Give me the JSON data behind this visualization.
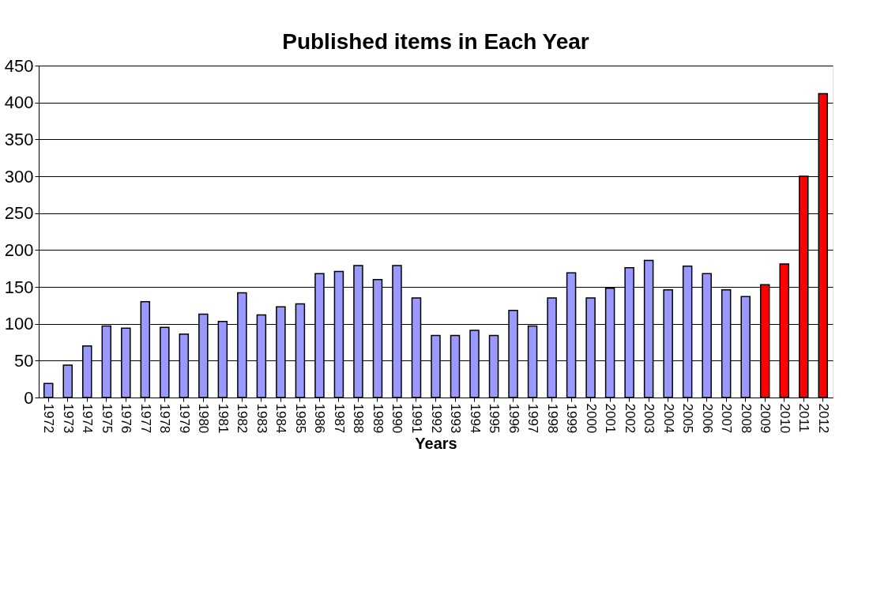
{
  "chart_data": {
    "type": "bar",
    "title": "Published items in Each Year",
    "xlabel": "Years",
    "categories": [
      "1972",
      "1973",
      "1974",
      "1975",
      "1976",
      "1977",
      "1978",
      "1979",
      "1980",
      "1981",
      "1982",
      "1983",
      "1984",
      "1985",
      "1986",
      "1987",
      "1988",
      "1989",
      "1990",
      "1991",
      "1992",
      "1993",
      "1994",
      "1995",
      "1996",
      "1997",
      "1998",
      "1999",
      "2000",
      "2001",
      "2002",
      "2003",
      "2004",
      "2005",
      "2006",
      "2007",
      "2008",
      "2009",
      "2010",
      "2011",
      "2012"
    ],
    "values": [
      19,
      44,
      70,
      97,
      94,
      130,
      95,
      86,
      113,
      103,
      142,
      112,
      123,
      127,
      168,
      171,
      179,
      160,
      179,
      135,
      84,
      84,
      91,
      84,
      118,
      97,
      135,
      169,
      135,
      148,
      176,
      186,
      146,
      178,
      168,
      146,
      137,
      153,
      181,
      300,
      412
    ],
    "colors": [
      "#9999ff",
      "#9999ff",
      "#9999ff",
      "#9999ff",
      "#9999ff",
      "#9999ff",
      "#9999ff",
      "#9999ff",
      "#9999ff",
      "#9999ff",
      "#9999ff",
      "#9999ff",
      "#9999ff",
      "#9999ff",
      "#9999ff",
      "#9999ff",
      "#9999ff",
      "#9999ff",
      "#9999ff",
      "#9999ff",
      "#9999ff",
      "#9999ff",
      "#9999ff",
      "#9999ff",
      "#9999ff",
      "#9999ff",
      "#9999ff",
      "#9999ff",
      "#9999ff",
      "#9999ff",
      "#9999ff",
      "#9999ff",
      "#9999ff",
      "#9999ff",
      "#9999ff",
      "#9999ff",
      "#9999ff",
      "#ff0000",
      "#ff0000",
      "#ff0000",
      "#ff0000"
    ],
    "ylim": [
      0,
      450
    ],
    "yticks": [
      0,
      50,
      100,
      150,
      200,
      250,
      300,
      350,
      400,
      450
    ],
    "grid": "y"
  }
}
